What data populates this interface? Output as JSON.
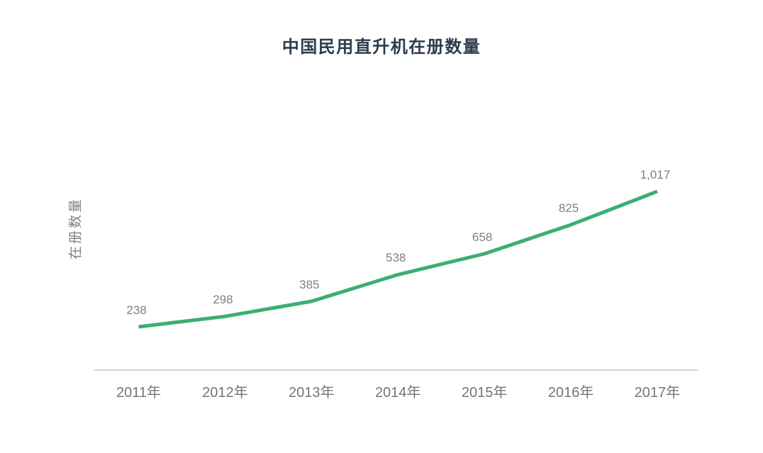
{
  "page": {
    "background_color": "#ffffff"
  },
  "chart_data": {
    "type": "line",
    "title": "中国民用直升机在册数量",
    "xlabel": "",
    "ylabel": "在册数量",
    "categories": [
      "2011年",
      "2012年",
      "2013年",
      "2014年",
      "2015年",
      "2016年",
      "2017年"
    ],
    "series": [
      {
        "name": "在册数量",
        "values": [
          238,
          298,
          385,
          538,
          658,
          825,
          1017
        ]
      }
    ],
    "data_labels": [
      "238",
      "298",
      "385",
      "538",
      "658",
      "825",
      "1,017"
    ],
    "legend_position": "none",
    "grid": false,
    "y_axis_ticks": "hidden",
    "ylim": [
      160,
      1120
    ],
    "colors": {
      "line": "#3cae73",
      "title": "#2e3b4e",
      "data_label": "#7f7f7f",
      "tick_label": "#757575",
      "axis_line": "#d2d2d2"
    }
  }
}
